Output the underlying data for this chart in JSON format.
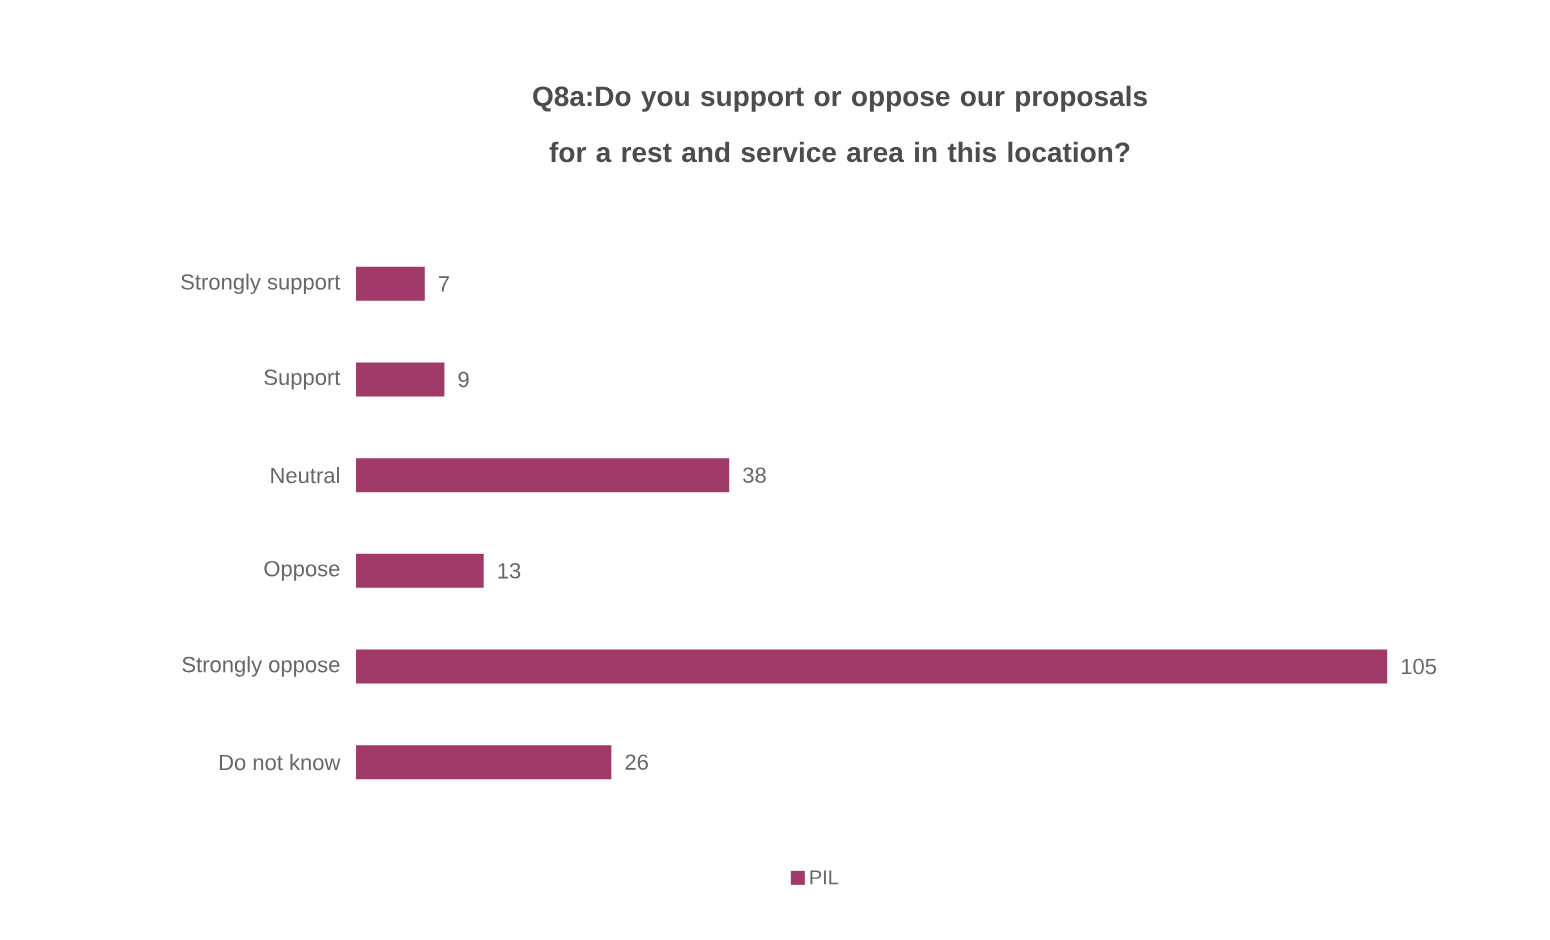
{
  "chart_data": {
    "type": "bar",
    "orientation": "horizontal",
    "title": "Q8a:Do you support or oppose our proposals for a rest and service area in this location?",
    "categories": [
      "Strongly support",
      "Support",
      "Neutral",
      "Oppose",
      "Strongly oppose",
      "Do not know"
    ],
    "series": [
      {
        "name": "PIL",
        "color": "#a03a68",
        "values": [
          7,
          9,
          38,
          13,
          105,
          26
        ]
      }
    ],
    "data_labels": true,
    "legend": "bottom"
  }
}
